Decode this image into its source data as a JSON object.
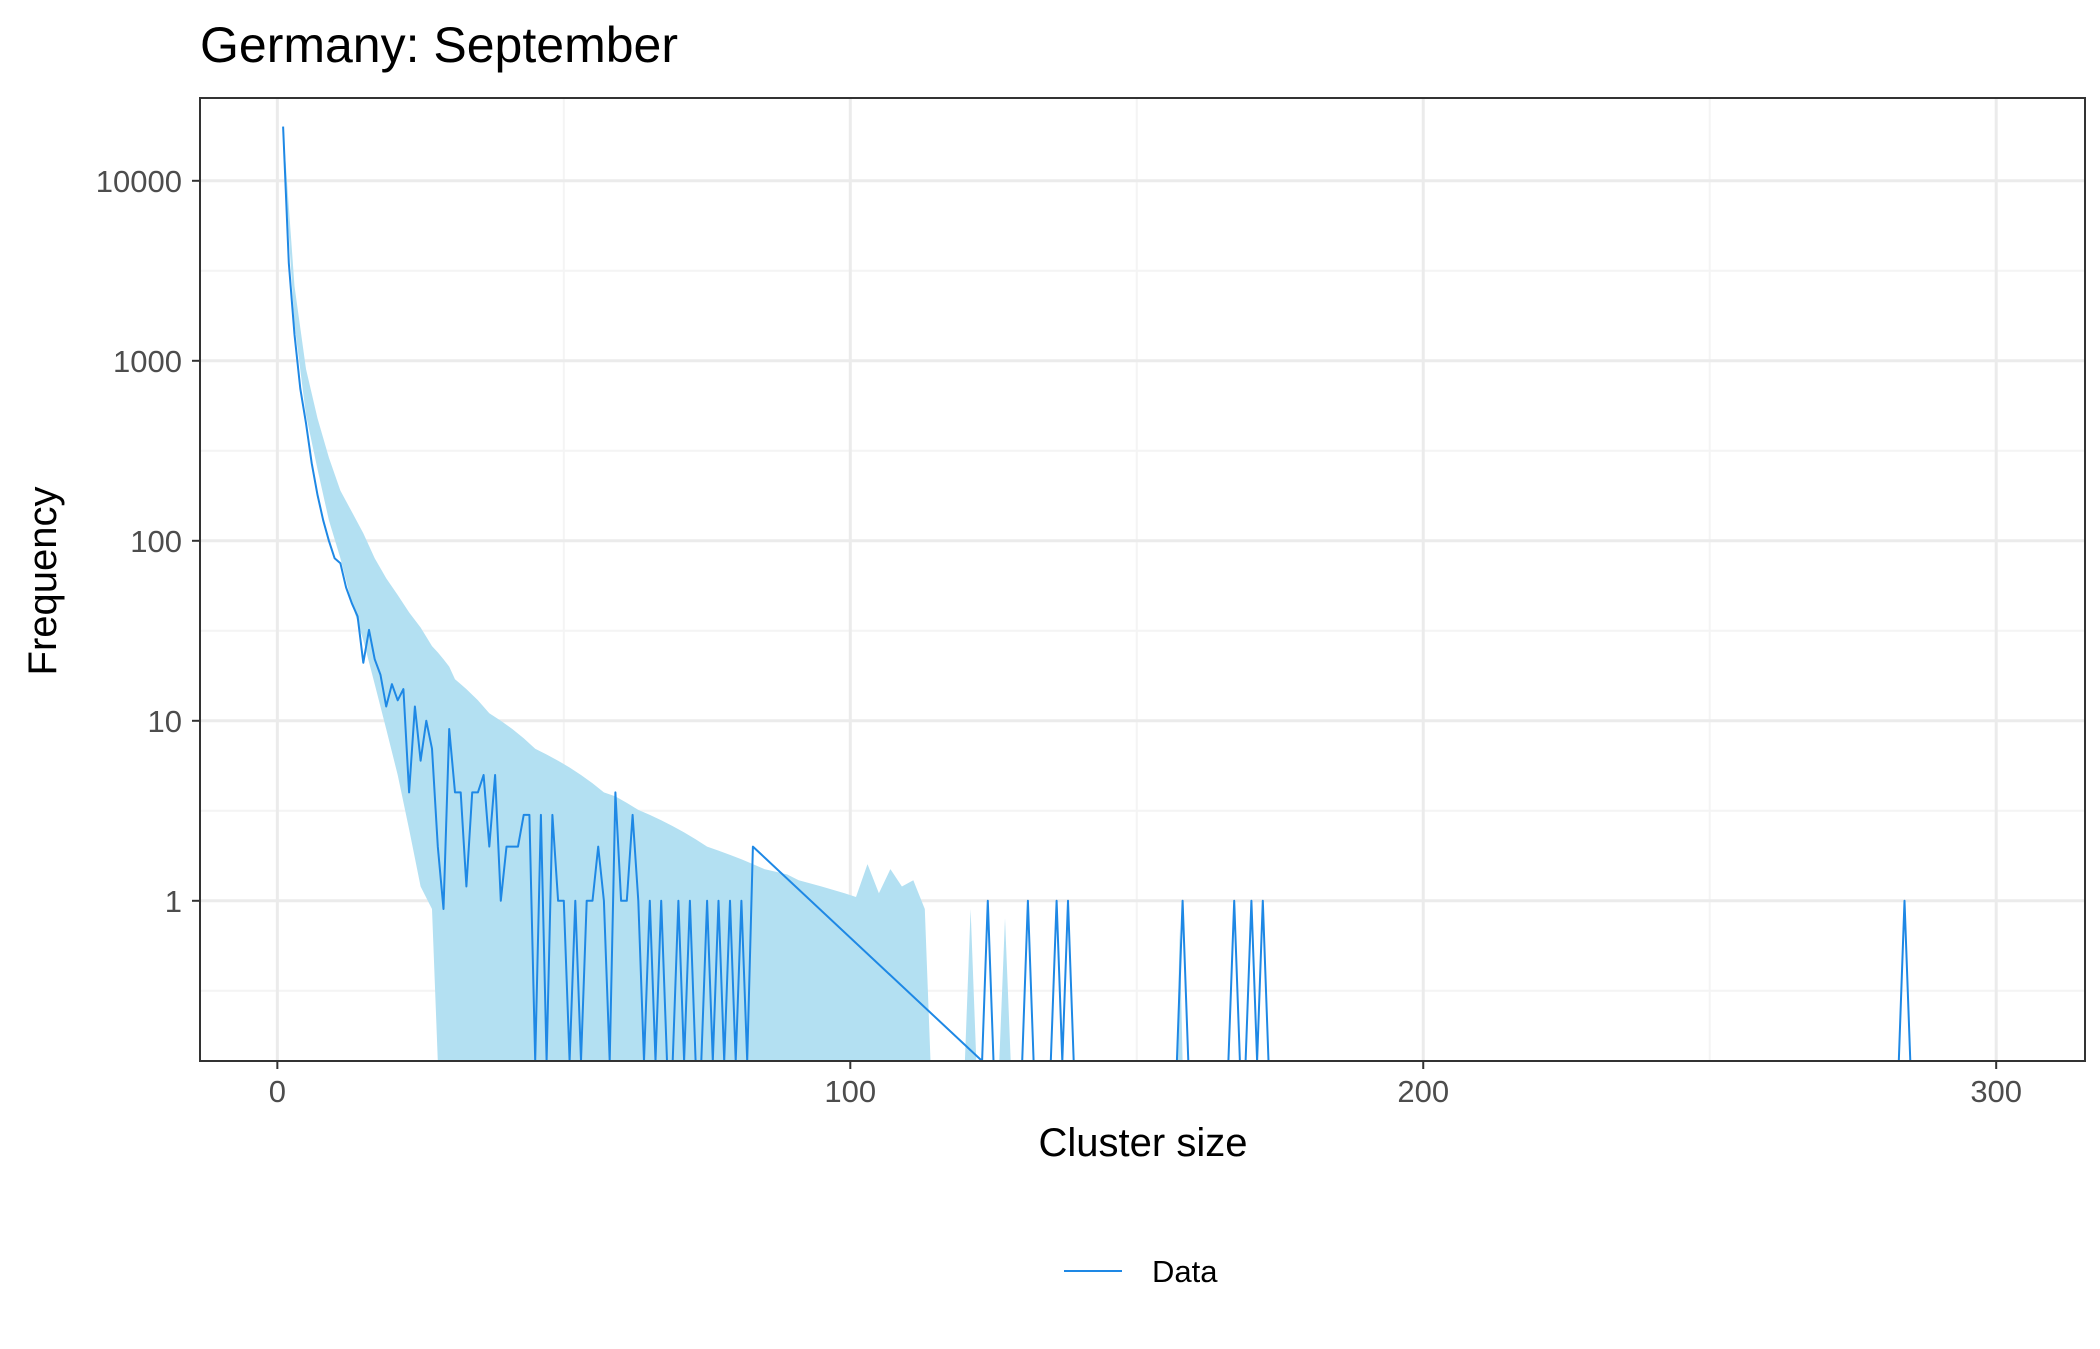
{
  "chart_data": {
    "type": "line",
    "title": "Germany: September",
    "xlabel": "Cluster size",
    "ylabel": "Frequency",
    "xlim": [
      -13.5,
      315.5
    ],
    "ylim_log10": [
      -0.89,
      4.46
    ],
    "y_scale": "log10",
    "x_ticks": [
      0,
      100,
      200,
      300
    ],
    "x_tick_labels": [
      "0",
      "100",
      "200",
      "300"
    ],
    "y_ticks": [
      1,
      10,
      100,
      1000,
      10000
    ],
    "y_tick_labels": [
      "1",
      "10",
      "100",
      "1000",
      "10000"
    ],
    "grid": true,
    "legend_position": "bottom",
    "colors": {
      "line": "#1e88e5",
      "band": "#b3e0f2",
      "grid_major": "#ebebeb",
      "grid_minor": "#f4f4f4",
      "panel_border": "#333333"
    },
    "series": [
      {
        "name": "Data",
        "x": [
          1,
          2,
          3,
          4,
          5,
          6,
          7,
          8,
          9,
          10,
          11,
          12,
          13,
          14,
          15,
          16,
          17,
          18,
          19,
          20,
          21,
          22,
          23,
          24,
          25,
          26,
          27,
          28,
          29,
          30,
          31,
          32,
          33,
          34,
          35,
          36,
          37,
          38,
          39,
          40,
          41,
          42,
          43,
          44,
          45,
          46,
          47,
          48,
          49,
          50,
          51,
          52,
          53,
          54,
          55,
          56,
          57,
          58,
          59,
          60,
          61,
          62,
          63,
          64,
          65,
          66,
          67,
          68,
          69,
          70,
          71,
          72,
          73,
          74,
          75,
          76,
          77,
          78,
          79,
          80,
          81,
          82,
          83,
          123,
          124,
          125,
          130,
          131,
          132,
          135,
          136,
          137,
          138,
          139,
          157,
          158,
          159,
          166,
          167,
          168,
          169,
          170,
          171,
          172,
          173,
          283,
          284,
          285
        ],
        "y": [
          20000,
          3500,
          1400,
          700,
          450,
          270,
          180,
          130,
          100,
          80,
          75,
          55,
          45,
          38,
          21,
          32,
          22,
          18,
          12,
          16,
          13,
          15,
          4,
          12,
          6,
          10,
          7,
          2,
          0.9,
          9,
          4,
          4,
          1.2,
          4,
          4,
          5,
          2,
          5,
          1,
          2,
          2,
          2,
          3,
          3,
          0.1,
          3,
          0.1,
          3,
          1,
          1,
          0.1,
          1,
          0.1,
          1,
          1,
          2,
          1,
          0.1,
          4,
          1,
          1,
          3,
          1,
          0.1,
          1,
          0.1,
          1,
          0.1,
          0.1,
          1,
          0.1,
          1,
          0.1,
          0.1,
          1,
          0.1,
          1,
          0.1,
          1,
          0.1,
          1,
          0.1,
          2,
          0.1,
          1,
          0.1,
          0.1,
          1,
          0.1,
          0.1,
          1,
          0.1,
          1,
          0.1,
          0.1,
          1,
          0.1,
          0.1,
          1,
          0.1,
          0.1,
          1,
          0.1,
          1,
          0.1,
          0.1,
          1,
          0.1
        ]
      }
    ],
    "band": {
      "x": [
        1,
        3,
        5,
        7,
        9,
        11,
        13,
        15,
        17,
        19,
        21,
        23,
        25,
        27,
        28,
        29,
        30,
        31,
        32,
        33,
        35,
        37,
        39,
        41,
        43,
        45,
        47,
        49,
        51,
        53,
        55,
        57,
        59,
        61,
        63,
        65,
        67,
        69,
        71,
        73,
        75,
        77,
        79,
        81,
        83,
        85,
        87,
        89,
        91,
        93,
        95,
        97,
        99,
        101,
        103,
        105,
        107,
        109,
        111,
        113,
        114
      ],
      "lower": [
        16000,
        1600,
        500,
        250,
        130,
        80,
        45,
        28,
        16,
        9,
        5,
        2.5,
        1.2,
        0.9,
        0.1,
        0.1,
        0.1,
        0.1,
        0.1,
        0.1,
        0.1,
        0.1,
        0.1,
        0.1,
        0.1,
        0.1,
        0.1,
        0.1,
        0.1,
        0.1,
        0.1,
        0.1,
        0.1,
        0.1,
        0.1,
        0.1,
        0.1,
        0.1,
        0.1,
        0.1,
        0.1,
        0.1,
        0.1,
        0.1,
        0.1,
        0.1,
        0.1,
        0.1,
        0.1,
        0.1,
        0.1,
        0.1,
        0.1,
        0.1,
        0.1,
        0.1,
        0.1,
        0.1,
        0.1,
        0.1,
        0.1
      ],
      "upper": [
        20000,
        2600,
        900,
        480,
        290,
        190,
        145,
        110,
        80,
        62,
        50,
        40,
        33,
        26,
        24,
        22,
        20,
        17,
        16,
        15,
        13,
        11,
        10,
        9,
        8,
        7,
        6.5,
        6,
        5.5,
        5,
        4.5,
        4,
        3.8,
        3.5,
        3.2,
        3,
        2.8,
        2.6,
        2.4,
        2.2,
        2,
        1.9,
        1.8,
        1.7,
        1.6,
        1.5,
        1.45,
        1.4,
        1.3,
        1.25,
        1.2,
        1.15,
        1.1,
        1.05,
        1.6,
        1.1,
        1.5,
        1.2,
        1.3,
        0.9,
        0.1
      ],
      "extra_segments": [
        {
          "x": [
            120,
            121,
            122
          ],
          "upper": [
            0.1,
            0.9,
            0.1
          ]
        },
        {
          "x": [
            126,
            127,
            128
          ],
          "upper": [
            0.1,
            0.8,
            0.1
          ]
        },
        {
          "x": [
            157,
            157.5,
            158
          ],
          "upper": [
            0.1,
            0.7,
            0.1
          ]
        }
      ]
    }
  },
  "legend": {
    "label": "Data"
  }
}
